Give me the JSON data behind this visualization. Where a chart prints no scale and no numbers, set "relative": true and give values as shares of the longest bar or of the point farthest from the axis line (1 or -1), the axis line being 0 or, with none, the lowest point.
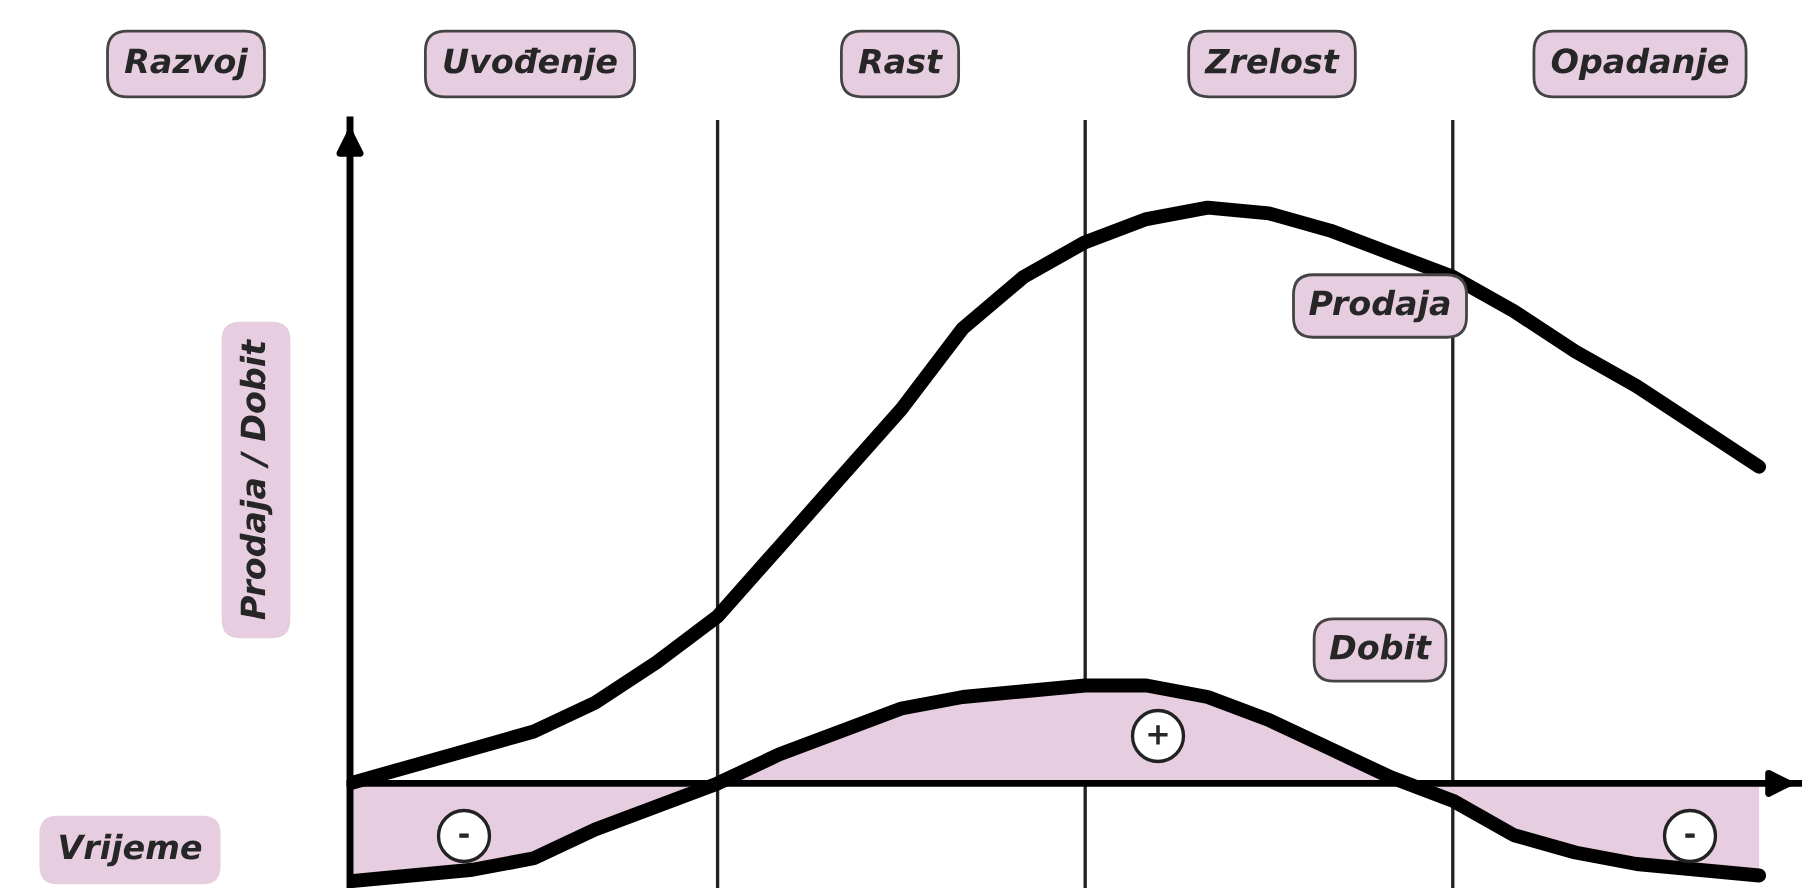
{
  "chart_data": {
    "type": "line",
    "relative": true,
    "xlabel": "Vrijeme",
    "ylabel": "Prodaja / Dobit",
    "categories": [
      null,
      null,
      null,
      null,
      null,
      null,
      null,
      null,
      null,
      null,
      null,
      null,
      null,
      null,
      null,
      null,
      null,
      null,
      null,
      null,
      null,
      null,
      null,
      null
    ],
    "series": [
      {
        "name": "Prodaja",
        "color": "#000000",
        "values": [
          0,
          0.03,
          0.06,
          0.09,
          0.14,
          0.21,
          0.29,
          0.41,
          0.53,
          0.65,
          0.79,
          0.88,
          0.94,
          0.98,
          1.0,
          0.99,
          0.96,
          0.92,
          0.88,
          0.82,
          0.75,
          0.69,
          0.62,
          0.55
        ]
      },
      {
        "name": "Dobit",
        "color": "#000000",
        "values": [
          -0.17,
          -0.16,
          -0.15,
          -0.13,
          -0.08,
          -0.04,
          0,
          0.05,
          0.09,
          0.13,
          0.15,
          0.16,
          0.17,
          0.17,
          0.15,
          0.11,
          0.06,
          0.01,
          -0.03,
          -0.09,
          -0.12,
          -0.14,
          -0.15,
          -0.16
        ],
        "lower": [
          -0.17,
          -0.16,
          -0.15,
          -0.13,
          -0.08,
          -0.04,
          0,
          0,
          0,
          0,
          0,
          0,
          0,
          0,
          0,
          0,
          0,
          0,
          -0.03,
          -0.09,
          -0.12,
          -0.14,
          -0.15,
          -0.16
        ],
        "upper": [
          0,
          0,
          0,
          0,
          0,
          0,
          0,
          0.05,
          0.09,
          0.13,
          0.15,
          0.16,
          0.17,
          0.17,
          0.15,
          0.11,
          0.06,
          0.01,
          0,
          0,
          0,
          0,
          0,
          0
        ]
      }
    ],
    "grid": "x",
    "annotations": [
      "Razvoj",
      "Uvođenje",
      "Rast",
      "Zrelost",
      "Opadanje",
      "-",
      "+",
      "-"
    ]
  }
}
